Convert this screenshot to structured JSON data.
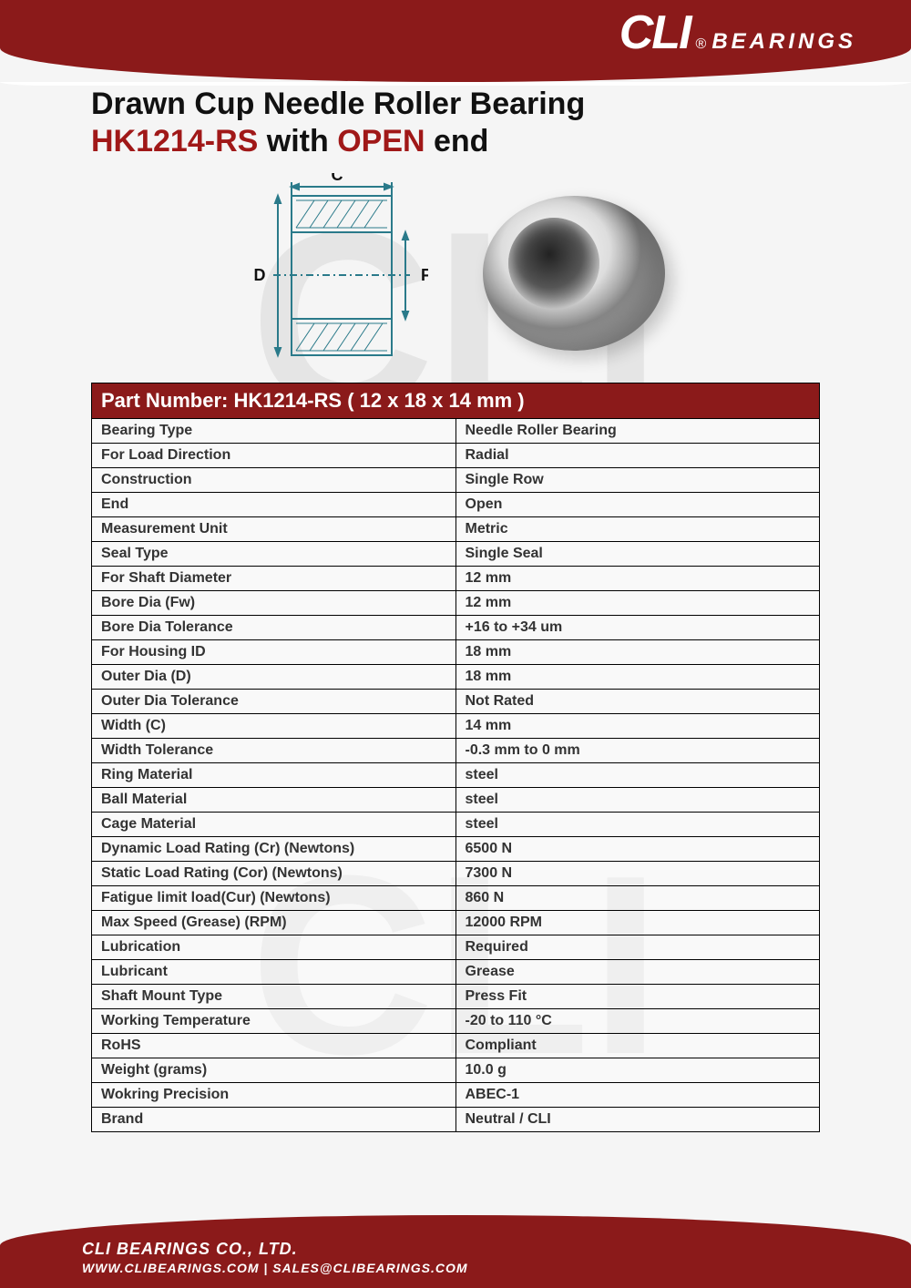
{
  "brand": {
    "logo_text": "CLI",
    "registered": "®",
    "logo_suffix": "BEARINGS",
    "primary_color": "#8b1a1a",
    "accent_color": "#a01818",
    "text_color": "#333333"
  },
  "title": {
    "line1": "Drawn Cup Needle Roller Bearing",
    "part": "HK1214-RS",
    "with": " with ",
    "end_type": "OPEN",
    "end_word": " end"
  },
  "diagram_labels": {
    "C": "C",
    "D": "D",
    "Fw": "Fw"
  },
  "table_header": "Part Number: HK1214-RS   ( 12 x 18 x 14 mm )",
  "specs": [
    {
      "label": "Bearing Type",
      "value": "Needle Roller Bearing"
    },
    {
      "label": "For Load Direction",
      "value": "Radial"
    },
    {
      "label": "Construction",
      "value": "Single Row"
    },
    {
      "label": "End",
      "value": "Open"
    },
    {
      "label": "Measurement Unit",
      "value": "Metric"
    },
    {
      "label": "Seal Type",
      "value": "Single Seal",
      "highlight": true
    },
    {
      "label": "For Shaft Diameter",
      "value": "12 mm"
    },
    {
      "label": "Bore Dia (Fw)",
      "value": "12 mm"
    },
    {
      "label": "Bore Dia Tolerance",
      "value": "+16 to +34 um"
    },
    {
      "label": "For Housing ID",
      "value": "18 mm"
    },
    {
      "label": "Outer Dia (D)",
      "value": "18 mm"
    },
    {
      "label": "Outer Dia Tolerance",
      "value": "Not Rated"
    },
    {
      "label": "Width (C)",
      "value": "14 mm"
    },
    {
      "label": "Width Tolerance",
      "value": "-0.3 mm to 0 mm"
    },
    {
      "label": "Ring Material",
      "value": "steel"
    },
    {
      "label": "Ball Material",
      "value": "steel"
    },
    {
      "label": "Cage Material",
      "value": "steel"
    },
    {
      "label": "Dynamic Load Rating (Cr) (Newtons)",
      "value": "6500 N"
    },
    {
      "label": "Static Load Rating (Cor) (Newtons)",
      "value": "7300 N"
    },
    {
      "label": "Fatigue limit load(Cur) (Newtons)",
      "value": "860 N"
    },
    {
      "label": "Max Speed (Grease) (RPM)",
      "value": "12000 RPM"
    },
    {
      "label": "Lubrication",
      "value": "Required"
    },
    {
      "label": "Lubricant",
      "value": "Grease"
    },
    {
      "label": "Shaft Mount Type",
      "value": "Press Fit"
    },
    {
      "label": "Working Temperature",
      "value": "-20 to 110 °C"
    },
    {
      "label": "RoHS",
      "value": "Compliant"
    },
    {
      "label": "Weight (grams)",
      "value": "10.0 g"
    },
    {
      "label": "Wokring Precision",
      "value": "ABEC-1"
    },
    {
      "label": "Brand",
      "value": "Neutral / CLI"
    }
  ],
  "footer": {
    "company": "CLI BEARINGS CO., LTD.",
    "website": "WWW.CLIBEARINGS.COM",
    "sep": "  |  ",
    "email": "SALES@CLIBEARINGS.COM"
  }
}
